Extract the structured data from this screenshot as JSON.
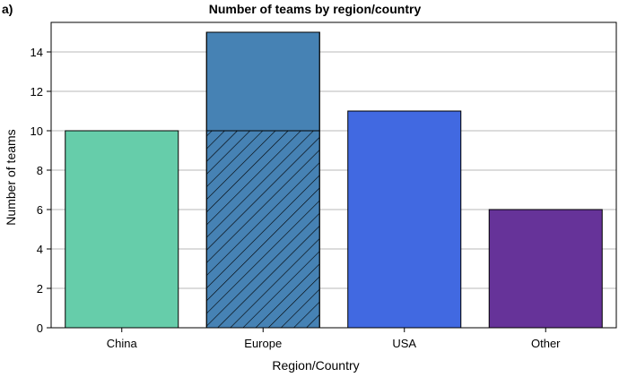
{
  "panel_label": "a)",
  "chart_data": {
    "type": "bar",
    "title": "Number of teams by region/country",
    "xlabel": "Region/Country",
    "ylabel": "Number of teams",
    "categories": [
      "China",
      "Europe",
      "USA",
      "Other"
    ],
    "values": [
      10,
      15,
      11,
      6
    ],
    "hatched_values": [
      0,
      10,
      0,
      0
    ],
    "colors": [
      "#66cdaa",
      "#4682b4",
      "#4169e1",
      "#663399"
    ],
    "hatch_color": "#000000",
    "ylim": [
      0,
      15.5
    ],
    "yticks": [
      "0",
      "2",
      "4",
      "6",
      "8",
      "10",
      "12",
      "14"
    ],
    "grid": true,
    "legend": "none"
  }
}
